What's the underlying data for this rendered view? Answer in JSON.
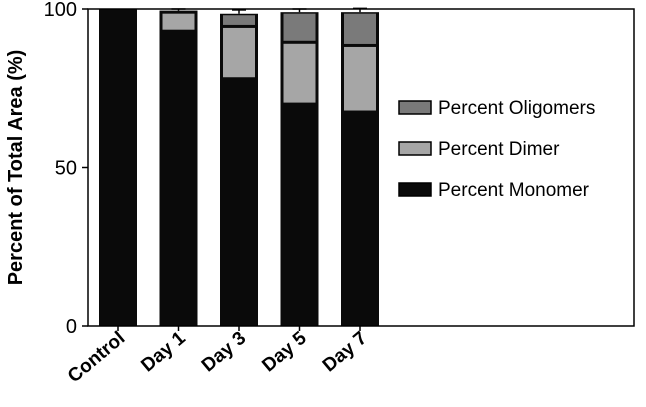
{
  "chart_data": {
    "type": "bar",
    "stacked": true,
    "categories": [
      "Control",
      "Day 1",
      "Day 3",
      "Day 5",
      "Day 7"
    ],
    "series": [
      {
        "name": "Percent Monomer",
        "color": "#0a0a0a",
        "values": [
          100,
          93,
          78,
          70,
          67.5
        ]
      },
      {
        "name": "Percent Dimer",
        "color": "#a6a6a6",
        "values": [
          0,
          6,
          16.5,
          19.5,
          21
        ]
      },
      {
        "name": "Percent Oligomers",
        "color": "#7a7a7a",
        "values": [
          0,
          0.5,
          4,
          9.5,
          10.5
        ]
      }
    ],
    "errors": [
      0,
      0.5,
      1.2,
      1.0,
      1.2
    ],
    "ylabel": "Percent of Total Area (%)",
    "xlabel": "",
    "ylim": [
      0,
      100
    ],
    "yticks": [
      0,
      50,
      100
    ],
    "legend_order": [
      "Percent Oligomers",
      "Percent Dimer",
      "Percent Monomer"
    ],
    "legend_position": "right"
  }
}
